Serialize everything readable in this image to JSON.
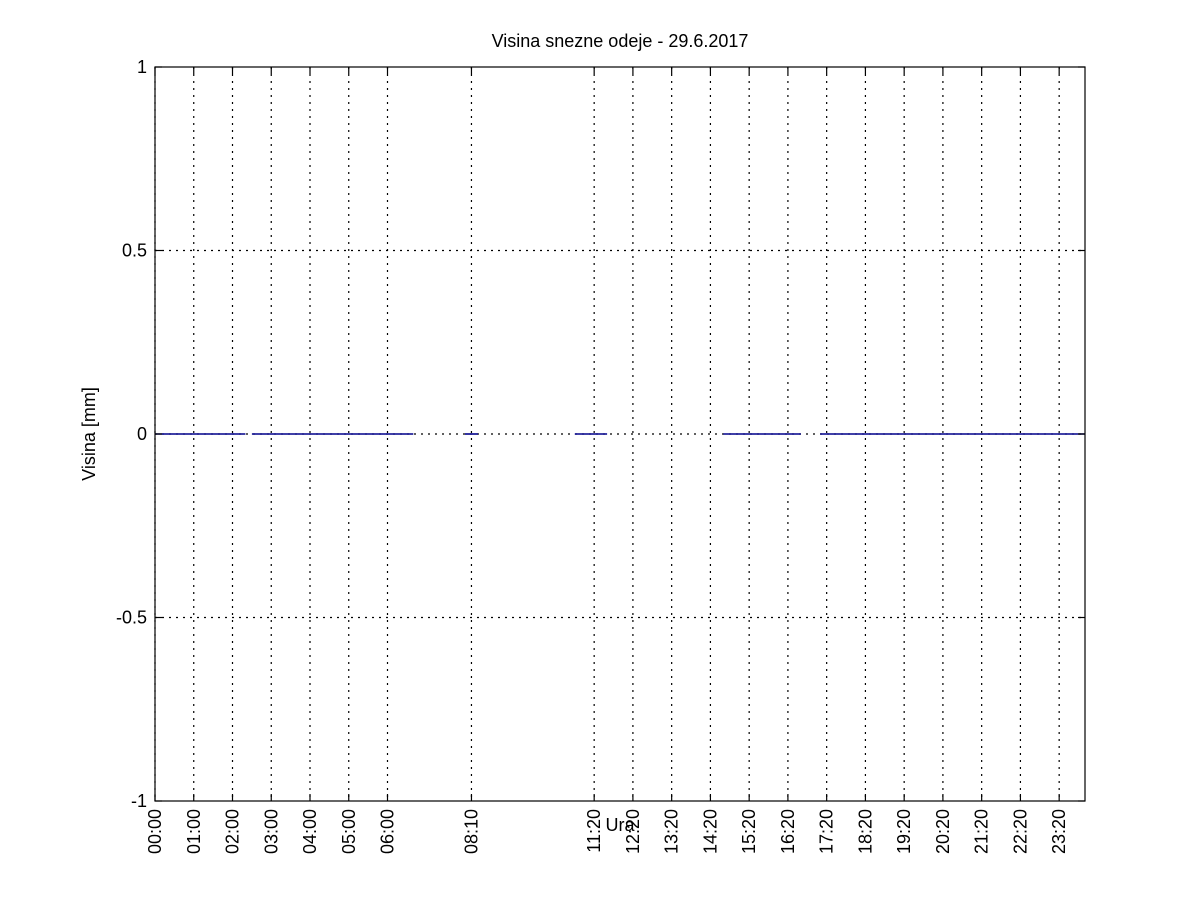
{
  "chart_data": {
    "type": "line",
    "title": "Visina snezne odeje - 29.6.2017",
    "xlabel": "Ura",
    "ylabel": "Visina [mm]",
    "ylim": [
      -1,
      1
    ],
    "yticks": [
      {
        "value": 1,
        "label": "1"
      },
      {
        "value": 0.5,
        "label": "0.5"
      },
      {
        "value": 0,
        "label": "0"
      },
      {
        "value": -0.5,
        "label": "-0.5"
      },
      {
        "value": -1,
        "label": "-1"
      }
    ],
    "xlim": [
      "00:00",
      "24:00"
    ],
    "xticks": [
      "00:00",
      "01:00",
      "02:00",
      "03:00",
      "04:00",
      "05:00",
      "06:00",
      "08:10",
      "11:20",
      "12:20",
      "13:20",
      "14:20",
      "15:20",
      "16:20",
      "17:20",
      "18:20",
      "19:20",
      "20:20",
      "21:20",
      "22:20",
      "23:20"
    ],
    "grid": true,
    "series_color": "#00008b",
    "segments": [
      {
        "x": [
          "00:00",
          "02:20"
        ],
        "y": [
          0,
          0
        ]
      },
      {
        "x": [
          "02:30",
          "06:40"
        ],
        "y": [
          0,
          0
        ]
      },
      {
        "x": [
          "08:00",
          "08:20"
        ],
        "y": [
          0,
          0
        ]
      },
      {
        "x": [
          "10:50",
          "11:40"
        ],
        "y": [
          0,
          0
        ]
      },
      {
        "x": [
          "14:40",
          "16:40"
        ],
        "y": [
          0,
          0
        ]
      },
      {
        "x": [
          "17:10",
          "24:00"
        ],
        "y": [
          0,
          0
        ]
      }
    ]
  }
}
